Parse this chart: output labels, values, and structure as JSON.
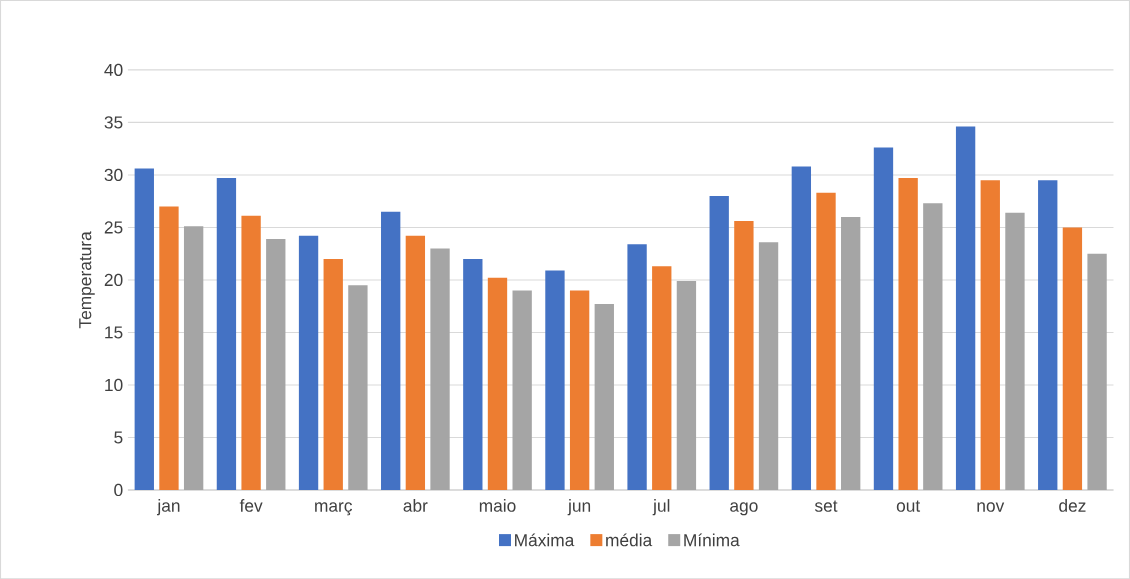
{
  "chart_data": {
    "type": "bar",
    "ylabel": "Temperatura",
    "categories": [
      "jan",
      "fev",
      "març",
      "abr",
      "maio",
      "jun",
      "jul",
      "ago",
      "set",
      "out",
      "nov",
      "dez"
    ],
    "series": [
      {
        "name": "Máxima",
        "color": "#4472c4",
        "values": [
          30.6,
          29.7,
          24.2,
          26.5,
          22.0,
          20.9,
          23.4,
          28.0,
          30.8,
          32.6,
          34.6,
          29.5
        ]
      },
      {
        "name": "média",
        "color": "#ed7d31",
        "values": [
          27.0,
          26.1,
          22.0,
          24.2,
          20.2,
          19.0,
          21.3,
          25.6,
          28.3,
          29.7,
          29.5,
          25.0
        ]
      },
      {
        "name": "Mínima",
        "color": "#a5a5a5",
        "values": [
          25.1,
          23.9,
          19.5,
          23.0,
          19.0,
          17.7,
          19.9,
          23.6,
          26.0,
          27.3,
          26.4,
          22.5
        ]
      }
    ],
    "ylim": [
      0,
      40
    ],
    "yticks": [
      0,
      5,
      10,
      15,
      20,
      25,
      30,
      35,
      40
    ],
    "grid": "y",
    "legend": "bottom"
  }
}
